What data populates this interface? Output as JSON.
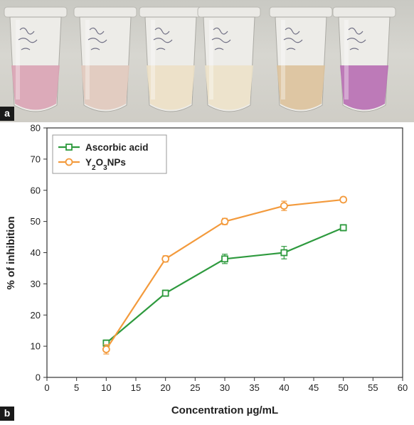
{
  "panel_a": {
    "label": "a",
    "tube_colors": [
      "#d9a3b4",
      "#e0c9bd",
      "#ece0c5",
      "#ece2c9",
      "#dbc29b",
      "#b76eb3"
    ]
  },
  "panel_b": {
    "label": "b"
  },
  "chart_data": {
    "type": "line",
    "title": "",
    "xlabel": "Concentration µg/mL",
    "ylabel": "% of inhibition",
    "xlim": [
      0,
      60
    ],
    "ylim": [
      0,
      80
    ],
    "xticks": [
      "0",
      "5",
      "10",
      "15",
      "20",
      "25",
      "30",
      "35",
      "40",
      "45",
      "50",
      "55",
      "60"
    ],
    "yticks": [
      "0",
      "10",
      "20",
      "30",
      "40",
      "50",
      "60",
      "70",
      "80"
    ],
    "legend_position": "top-left",
    "grid": false,
    "series": [
      {
        "name": "Ascorbic acid",
        "color": "#2e9a3e",
        "marker": "square",
        "x": [
          10,
          20,
          30,
          40,
          50
        ],
        "y": [
          11,
          27,
          38,
          40,
          48
        ],
        "error": [
          1,
          1,
          1.5,
          2,
          1
        ]
      },
      {
        "name": "Y2O3NPs",
        "color": "#f39a3c",
        "marker": "circle",
        "x": [
          10,
          20,
          30,
          40,
          50
        ],
        "y": [
          9,
          38,
          50,
          55,
          57
        ],
        "error": [
          1.5,
          1,
          1,
          1.5,
          0.8
        ]
      }
    ]
  }
}
